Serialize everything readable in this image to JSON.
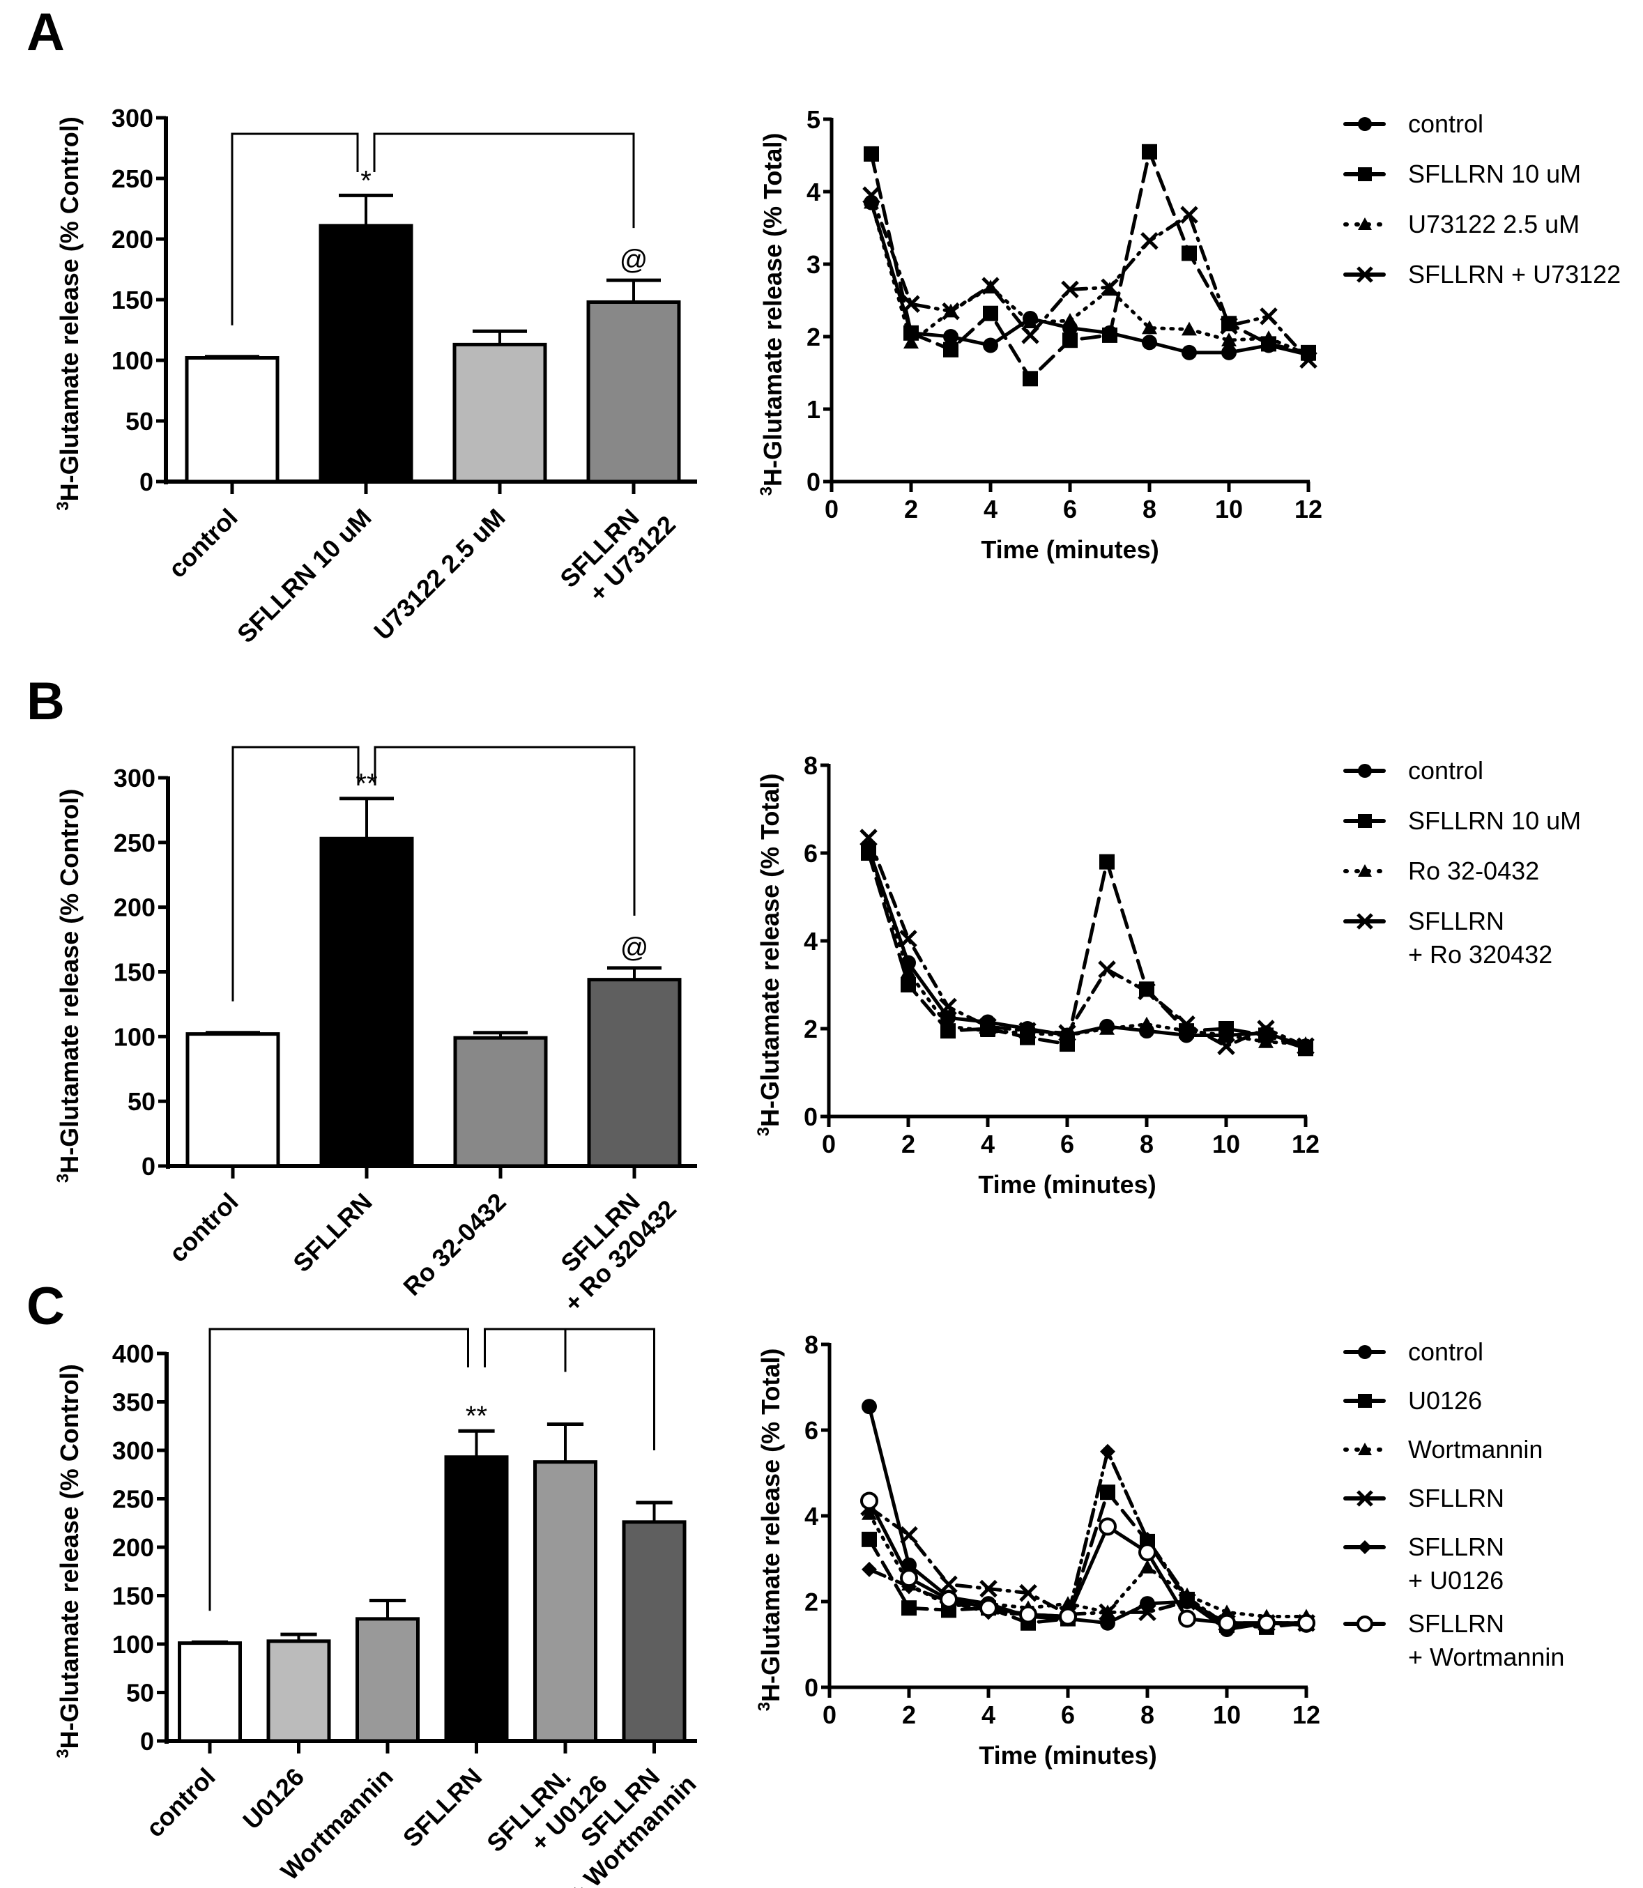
{
  "figure": {
    "panels": [
      "A",
      "B",
      "C"
    ]
  },
  "chart_data": [
    {
      "id": "A-bar",
      "panel": "A",
      "type": "bar",
      "ylabel_sup": "3",
      "ylabel": "H-Glutamate release (% Control)",
      "xlabel": "",
      "ylim": [
        0,
        300
      ],
      "yticks": [
        0,
        50,
        100,
        150,
        200,
        250,
        300
      ],
      "categories": [
        [
          "control"
        ],
        [
          "SFLLRN 10 uM"
        ],
        [
          "U73122 2.5 uM"
        ],
        [
          "SFLLRN",
          "+ U73122"
        ]
      ],
      "values": [
        102,
        211,
        113,
        148
      ],
      "errors": [
        1,
        25,
        11,
        18
      ],
      "colors": [
        "#ffffff",
        "#000000",
        "#b9b9b9",
        "#888888"
      ],
      "brackets": [
        {
          "from": 0,
          "to": 1
        },
        {
          "from": 1,
          "to": 3
        }
      ],
      "annotations": [
        {
          "bar": 1,
          "text": "*"
        },
        {
          "bar": 3,
          "text": "@"
        }
      ]
    },
    {
      "id": "A-line",
      "panel": "A",
      "type": "line",
      "ylabel_sup": "3",
      "ylabel": "H-Glutamate release (% Total)",
      "xlabel": "Time (minutes)",
      "xlim": [
        0,
        12
      ],
      "ylim": [
        0,
        5
      ],
      "xticks": [
        0,
        2,
        4,
        6,
        8,
        10,
        12
      ],
      "yticks": [
        0,
        1,
        2,
        3,
        4,
        5
      ],
      "x": [
        1,
        2,
        3,
        4,
        5,
        6,
        7,
        8,
        9,
        10,
        11,
        12
      ],
      "legend_position": "right",
      "series": [
        {
          "name": [
            "control"
          ],
          "marker": "circle",
          "dash": "solid",
          "values": [
            3.85,
            2.05,
            2.0,
            1.88,
            2.25,
            2.12,
            2.05,
            1.92,
            1.78,
            1.78,
            1.88,
            1.75
          ]
        },
        {
          "name": [
            "SFLLRN 10 uM"
          ],
          "marker": "square",
          "dash": "dashed",
          "values": [
            4.52,
            2.05,
            1.82,
            2.32,
            1.42,
            1.95,
            2.02,
            4.55,
            3.15,
            2.18,
            1.9,
            1.78
          ]
        },
        {
          "name": [
            "U73122 2.5 uM"
          ],
          "marker": "triangle",
          "dash": "dotted",
          "values": [
            3.85,
            1.92,
            2.35,
            2.68,
            2.2,
            2.22,
            2.65,
            2.12,
            2.1,
            1.95,
            1.98,
            1.75
          ]
        },
        {
          "name": [
            "SFLLRN + U73122"
          ],
          "marker": "x",
          "dash": "dashdot",
          "values": [
            3.95,
            2.45,
            2.35,
            2.7,
            2.02,
            2.65,
            2.68,
            3.32,
            3.68,
            2.15,
            2.28,
            1.68
          ]
        }
      ]
    },
    {
      "id": "B-bar",
      "panel": "B",
      "type": "bar",
      "ylabel_sup": "3",
      "ylabel": "H-Glutamate release (% Control)",
      "xlabel": "",
      "ylim": [
        0,
        300
      ],
      "yticks": [
        0,
        50,
        100,
        150,
        200,
        250,
        300
      ],
      "categories": [
        [
          "control"
        ],
        [
          "SFLLRN"
        ],
        [
          "Ro 32-0432"
        ],
        [
          "SFLLRN",
          "+ Ro 320432"
        ]
      ],
      "values": [
        102,
        253,
        99,
        144
      ],
      "errors": [
        1,
        31,
        4,
        9
      ],
      "colors": [
        "#ffffff",
        "#000000",
        "#888888",
        "#5f5f5f"
      ],
      "brackets": [
        {
          "from": 0,
          "to": 1
        },
        {
          "from": 1,
          "to": 3
        }
      ],
      "annotations": [
        {
          "bar": 1,
          "text": "**"
        },
        {
          "bar": 3,
          "text": "@"
        }
      ]
    },
    {
      "id": "B-line",
      "panel": "B",
      "type": "line",
      "ylabel_sup": "3",
      "ylabel": "H-Glutamate release (% Total)",
      "xlabel": "Time (minutes)",
      "xlim": [
        0,
        12
      ],
      "ylim": [
        0,
        8
      ],
      "xticks": [
        0,
        2,
        4,
        6,
        8,
        10,
        12
      ],
      "yticks": [
        0,
        2,
        4,
        6,
        8
      ],
      "x": [
        1,
        2,
        3,
        4,
        5,
        6,
        7,
        8,
        9,
        10,
        11,
        12
      ],
      "legend_position": "right",
      "series": [
        {
          "name": [
            "control"
          ],
          "marker": "circle",
          "dash": "solid",
          "values": [
            6.1,
            3.5,
            2.25,
            2.15,
            2.0,
            1.85,
            2.05,
            1.95,
            1.85,
            1.85,
            1.9,
            1.6
          ]
        },
        {
          "name": [
            "SFLLRN 10 uM"
          ],
          "marker": "square",
          "dash": "dashed",
          "values": [
            6.0,
            3.0,
            1.95,
            2.0,
            1.8,
            1.65,
            5.8,
            2.9,
            1.95,
            2.0,
            1.85,
            1.55
          ]
        },
        {
          "name": [
            "Ro 32-0432"
          ],
          "marker": "triangle",
          "dash": "dotted",
          "values": [
            6.1,
            3.3,
            2.05,
            1.95,
            1.9,
            1.85,
            2.0,
            2.1,
            1.95,
            1.85,
            1.7,
            1.65
          ]
        },
        {
          "name": [
            "SFLLRN",
            "+ Ro 320432"
          ],
          "marker": "x",
          "dash": "dashdot",
          "values": [
            6.35,
            4.05,
            2.5,
            2.05,
            1.95,
            1.9,
            3.35,
            2.85,
            2.1,
            1.6,
            2.0,
            1.6
          ]
        }
      ]
    },
    {
      "id": "C-bar",
      "panel": "C",
      "type": "bar",
      "ylabel_sup": "3",
      "ylabel": "H-Glutamate release (% Control)",
      "xlabel": "",
      "ylim": [
        0,
        400
      ],
      "yticks": [
        0,
        50,
        100,
        150,
        200,
        250,
        300,
        350,
        400
      ],
      "categories": [
        [
          "control"
        ],
        [
          "U0126"
        ],
        [
          "Wortmannin"
        ],
        [
          "SFLLRN"
        ],
        [
          "SFLLRN.",
          "+ U0126"
        ],
        [
          "SFLLRN",
          "+ Wortmannin"
        ]
      ],
      "values": [
        101,
        103,
        126,
        293,
        288,
        226
      ],
      "errors": [
        1,
        7,
        19,
        27,
        39,
        20
      ],
      "colors": [
        "#ffffff",
        "#bbbbbb",
        "#999999",
        "#000000",
        "#999999",
        "#5f5f5f"
      ],
      "brackets": [
        {
          "from": 0,
          "to": 3
        },
        {
          "from": 3,
          "to": 4
        },
        {
          "from": 3,
          "to": 5
        }
      ],
      "annotations": [
        {
          "bar": 3,
          "text": "**"
        }
      ]
    },
    {
      "id": "C-line",
      "panel": "C",
      "type": "line",
      "ylabel_sup": "3",
      "ylabel": "H-Glutamate release (% Total)",
      "xlabel": "Time (minutes)",
      "xlim": [
        0,
        12
      ],
      "ylim": [
        0,
        8
      ],
      "xticks": [
        0,
        2,
        4,
        6,
        8,
        10,
        12
      ],
      "yticks": [
        0,
        2,
        4,
        6,
        8
      ],
      "x": [
        1,
        2,
        3,
        4,
        5,
        6,
        7,
        8,
        9,
        10,
        11,
        12
      ],
      "legend_position": "right",
      "series": [
        {
          "name": [
            "control"
          ],
          "marker": "circle",
          "dash": "solid",
          "values": [
            6.55,
            2.85,
            2.1,
            1.95,
            1.65,
            1.6,
            1.5,
            1.95,
            2.0,
            1.35,
            1.5,
            1.45
          ]
        },
        {
          "name": [
            "U0126"
          ],
          "marker": "square",
          "dash": "dashed",
          "values": [
            3.45,
            1.85,
            1.8,
            1.85,
            1.5,
            1.6,
            4.55,
            3.4,
            2.05,
            1.45,
            1.4,
            1.5
          ]
        },
        {
          "name": [
            "Wortmannin"
          ],
          "marker": "triangle",
          "dash": "dotted",
          "values": [
            4.05,
            2.4,
            1.9,
            1.95,
            1.85,
            1.95,
            1.75,
            2.8,
            2.15,
            1.75,
            1.65,
            1.65
          ]
        },
        {
          "name": [
            "SFLLRN"
          ],
          "marker": "x",
          "dash": "dashdot",
          "values": [
            4.2,
            3.55,
            2.4,
            2.3,
            2.2,
            1.7,
            1.75,
            1.75,
            2.0,
            1.5,
            1.5,
            1.5
          ]
        },
        {
          "name": [
            "SFLLRN",
            "+ U0126"
          ],
          "marker": "diamond",
          "dash": "dashdot2",
          "values": [
            2.75,
            2.35,
            2.0,
            1.75,
            1.7,
            1.65,
            5.5,
            3.45,
            2.1,
            1.45,
            1.5,
            1.5
          ]
        },
        {
          "name": [
            "SFLLRN",
            "+ Wortmannin"
          ],
          "marker": "opencircle",
          "dash": "solid",
          "values": [
            4.35,
            2.55,
            2.05,
            1.85,
            1.7,
            1.65,
            3.75,
            3.15,
            1.6,
            1.5,
            1.5,
            1.5
          ]
        }
      ]
    }
  ]
}
